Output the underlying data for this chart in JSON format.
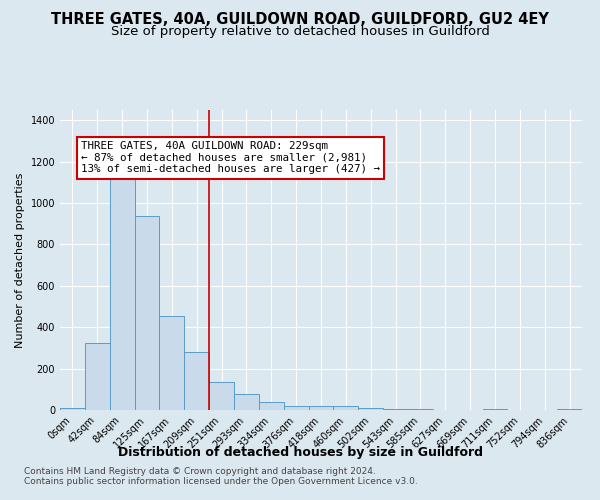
{
  "title": "THREE GATES, 40A, GUILDOWN ROAD, GUILDFORD, GU2 4EY",
  "subtitle": "Size of property relative to detached houses in Guildford",
  "xlabel": "Distribution of detached houses by size in Guildford",
  "ylabel": "Number of detached properties",
  "footnote1": "Contains HM Land Registry data © Crown copyright and database right 2024.",
  "footnote2": "Contains public sector information licensed under the Open Government Licence v3.0.",
  "annotation_lines": [
    "THREE GATES, 40A GUILDOWN ROAD: 229sqm",
    "← 87% of detached houses are smaller (2,981)",
    "13% of semi-detached houses are larger (427) →"
  ],
  "bar_labels": [
    "0sqm",
    "42sqm",
    "84sqm",
    "125sqm",
    "167sqm",
    "209sqm",
    "251sqm",
    "293sqm",
    "334sqm",
    "376sqm",
    "418sqm",
    "460sqm",
    "502sqm",
    "543sqm",
    "585sqm",
    "627sqm",
    "669sqm",
    "711sqm",
    "752sqm",
    "794sqm",
    "836sqm"
  ],
  "bar_values": [
    10,
    325,
    1120,
    940,
    455,
    280,
    135,
    75,
    40,
    20,
    20,
    18,
    8,
    5,
    3,
    2,
    0,
    5,
    0,
    0,
    5
  ],
  "bar_color": "#c9daea",
  "bar_edge_color": "#5a9bc8",
  "reference_line_x": 5.5,
  "reference_line_color": "#cc0000",
  "ylim": [
    0,
    1450
  ],
  "background_color": "#dce8f0",
  "plot_background": "#dce8f0",
  "grid_color": "#ffffff",
  "title_fontsize": 10.5,
  "subtitle_fontsize": 9.5,
  "annotation_fontsize": 7.8,
  "ylabel_fontsize": 8,
  "xlabel_fontsize": 9,
  "tick_fontsize": 7,
  "footnote_fontsize": 6.5
}
